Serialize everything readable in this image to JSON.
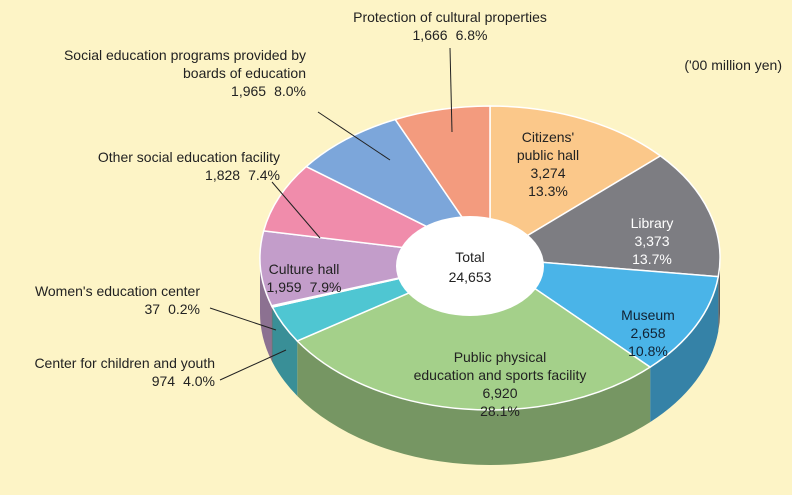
{
  "chart_data": {
    "type": "pie",
    "unit_label": "('00 million yen)",
    "center_text": [
      "Total",
      "24,653"
    ],
    "categories": [
      [
        "Citizens'",
        "public hall"
      ],
      [
        "Library"
      ],
      [
        "Museum"
      ],
      [
        "Public physical",
        "education and sports facility"
      ],
      [
        "Center for children and youth"
      ],
      [
        "Women's education center"
      ],
      [
        "Culture hall"
      ],
      [
        "Other social education facility"
      ],
      [
        "Social education programs provided by",
        "boards of education"
      ],
      [
        "Protection of cultural properties"
      ]
    ],
    "values": [
      3274,
      3373,
      2658,
      6920,
      974,
      37,
      1959,
      1828,
      1965,
      1666
    ],
    "value_labels": [
      "3,274",
      "3,373",
      "2,658",
      "6,920",
      "974",
      "37",
      "1,959",
      "1,828",
      "1,965",
      "1,666"
    ],
    "percent_labels": [
      "13.3%",
      "13.7%",
      "10.8%",
      "28.1%",
      "4.0%",
      "0.2%",
      "7.9%",
      "7.4%",
      "8.0%",
      "6.8%"
    ],
    "colors": [
      "#fbc88a",
      "#7d7d82",
      "#4ab4e8",
      "#a4d08a",
      "#4fc6d2",
      "#6a5a70",
      "#c39dca",
      "#f08cab",
      "#7ca6da",
      "#f39b7e"
    ]
  }
}
